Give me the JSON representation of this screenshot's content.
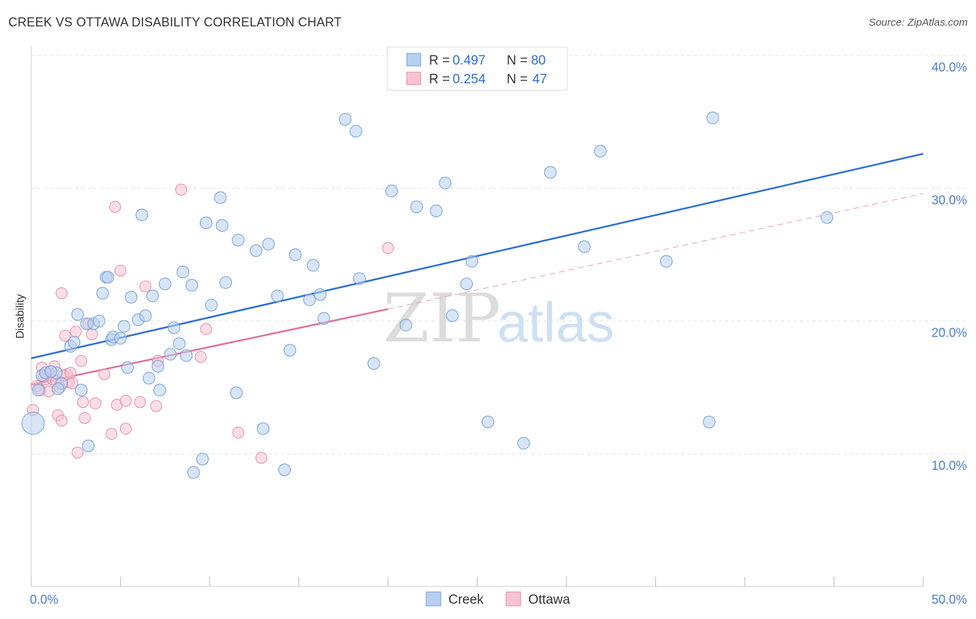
{
  "header": {
    "title": "CREEK VS OTTAWA DISABILITY CORRELATION CHART",
    "source": "Source: ZipAtlas.com"
  },
  "watermark": {
    "zip": "ZIP",
    "atlas": "atlas"
  },
  "legend": {
    "rows": [
      {
        "r_label": "R =",
        "r_value": "0.497",
        "n_label": "N =",
        "n_value": "80"
      },
      {
        "r_label": "R =",
        "r_value": "0.254",
        "n_label": "N =",
        "n_value": "47"
      }
    ]
  },
  "bottom_legend": {
    "creek": "Creek",
    "ottawa": "Ottawa"
  },
  "colors": {
    "creek_fill": "#b8d0f0",
    "creek_stroke": "#6f9fd8",
    "creek_line": "#2d6fd0",
    "ottawa_fill": "#f7c3d2",
    "ottawa_stroke": "#e88aa8",
    "ottawa_line": "#e0709a",
    "grid": "#e3e3e3",
    "tick_label": "#4a7fcf"
  },
  "chart_data": {
    "type": "scatter",
    "title": "CREEK VS OTTAWA DISABILITY CORRELATION CHART",
    "xlabel": "",
    "ylabel": "Disability",
    "xlim": [
      0,
      50
    ],
    "ylim": [
      0,
      42
    ],
    "x_tick_labels": [
      "0.0%",
      "50.0%"
    ],
    "y_ticks": [
      10,
      20,
      30,
      40
    ],
    "y_tick_labels": [
      "10.0%",
      "20.0%",
      "30.0%",
      "40.0%"
    ],
    "grid": true,
    "legend_position": "top-center",
    "series": [
      {
        "name": "Creek",
        "r": 0.497,
        "n": 80,
        "trend": {
          "x": [
            0,
            50
          ],
          "y": [
            17.2,
            32.6
          ],
          "style": "solid"
        },
        "points": [
          [
            0.1,
            12.3
          ],
          [
            0.4,
            14.8
          ],
          [
            0.6,
            15.9
          ],
          [
            0.8,
            16.1
          ],
          [
            1.4,
            16.1
          ],
          [
            1.7,
            15.3
          ],
          [
            1.5,
            14.9
          ],
          [
            1.1,
            16.2
          ],
          [
            2.2,
            18.1
          ],
          [
            2.4,
            18.4
          ],
          [
            2.6,
            20.5
          ],
          [
            2.8,
            14.8
          ],
          [
            3.1,
            19.8
          ],
          [
            3.2,
            10.6
          ],
          [
            3.5,
            19.8
          ],
          [
            3.8,
            20.0
          ],
          [
            4.0,
            22.1
          ],
          [
            4.2,
            23.3
          ],
          [
            4.3,
            23.3
          ],
          [
            4.5,
            18.6
          ],
          [
            4.6,
            18.8
          ],
          [
            5.0,
            18.7
          ],
          [
            5.2,
            19.6
          ],
          [
            5.4,
            16.5
          ],
          [
            5.6,
            21.8
          ],
          [
            6.0,
            20.1
          ],
          [
            6.2,
            28.0
          ],
          [
            6.4,
            20.4
          ],
          [
            6.6,
            15.7
          ],
          [
            6.8,
            21.9
          ],
          [
            7.1,
            16.6
          ],
          [
            7.2,
            14.8
          ],
          [
            7.5,
            22.8
          ],
          [
            7.8,
            17.5
          ],
          [
            8.0,
            19.5
          ],
          [
            8.3,
            18.3
          ],
          [
            8.5,
            23.7
          ],
          [
            8.7,
            17.4
          ],
          [
            9.0,
            22.7
          ],
          [
            9.1,
            8.6
          ],
          [
            9.6,
            9.6
          ],
          [
            9.8,
            27.4
          ],
          [
            10.1,
            21.2
          ],
          [
            10.6,
            29.3
          ],
          [
            10.7,
            27.2
          ],
          [
            10.9,
            22.9
          ],
          [
            11.5,
            14.6
          ],
          [
            11.6,
            26.1
          ],
          [
            12.6,
            25.3
          ],
          [
            13.0,
            11.9
          ],
          [
            13.3,
            25.8
          ],
          [
            13.8,
            21.9
          ],
          [
            14.2,
            8.8
          ],
          [
            14.5,
            17.8
          ],
          [
            14.8,
            25.0
          ],
          [
            15.6,
            21.6
          ],
          [
            15.8,
            24.2
          ],
          [
            16.2,
            22.0
          ],
          [
            16.4,
            20.2
          ],
          [
            17.6,
            35.2
          ],
          [
            18.2,
            34.3
          ],
          [
            18.4,
            23.2
          ],
          [
            19.2,
            16.8
          ],
          [
            20.2,
            29.8
          ],
          [
            21.0,
            19.7
          ],
          [
            21.6,
            28.6
          ],
          [
            22.7,
            28.3
          ],
          [
            23.2,
            30.4
          ],
          [
            23.6,
            20.4
          ],
          [
            24.4,
            22.8
          ],
          [
            24.7,
            24.5
          ],
          [
            25.6,
            12.4
          ],
          [
            27.6,
            10.8
          ],
          [
            29.1,
            31.2
          ],
          [
            31.0,
            25.6
          ],
          [
            31.9,
            32.8
          ],
          [
            35.6,
            24.5
          ],
          [
            38.2,
            35.3
          ],
          [
            44.6,
            27.8
          ],
          [
            38.0,
            12.4
          ]
        ]
      },
      {
        "name": "Ottawa",
        "r": 0.254,
        "n": 47,
        "trend": {
          "x": [
            0,
            20
          ],
          "y": [
            15.2,
            20.9
          ],
          "style": "solid",
          "extension": {
            "x": [
              20,
              50
            ],
            "y": [
              20.9,
              29.6
            ],
            "style": "dashed"
          }
        },
        "points": [
          [
            0.1,
            13.3
          ],
          [
            0.3,
            15.1
          ],
          [
            0.5,
            14.8
          ],
          [
            0.6,
            16.5
          ],
          [
            0.8,
            15.6
          ],
          [
            0.9,
            15.9
          ],
          [
            1.0,
            14.7
          ],
          [
            1.1,
            16.2
          ],
          [
            1.2,
            15.6
          ],
          [
            1.3,
            16.6
          ],
          [
            1.4,
            15.5
          ],
          [
            1.5,
            12.9
          ],
          [
            1.6,
            15.0
          ],
          [
            1.7,
            12.5
          ],
          [
            1.7,
            22.1
          ],
          [
            1.9,
            18.9
          ],
          [
            2.0,
            16.0
          ],
          [
            2.1,
            15.4
          ],
          [
            2.3,
            15.3
          ],
          [
            2.5,
            19.2
          ],
          [
            2.6,
            10.1
          ],
          [
            2.8,
            17.0
          ],
          [
            2.9,
            13.9
          ],
          [
            3.0,
            12.7
          ],
          [
            3.2,
            19.8
          ],
          [
            3.4,
            19.0
          ],
          [
            3.6,
            13.8
          ],
          [
            4.1,
            16.0
          ],
          [
            4.5,
            11.5
          ],
          [
            4.7,
            28.6
          ],
          [
            4.8,
            13.7
          ],
          [
            5.0,
            23.8
          ],
          [
            5.3,
            14.0
          ],
          [
            5.3,
            11.9
          ],
          [
            6.1,
            13.9
          ],
          [
            6.4,
            22.6
          ],
          [
            7.0,
            13.6
          ],
          [
            7.1,
            17.0
          ],
          [
            8.4,
            29.9
          ],
          [
            9.5,
            17.3
          ],
          [
            9.8,
            19.4
          ],
          [
            11.6,
            11.6
          ],
          [
            12.9,
            9.7
          ],
          [
            20.0,
            25.5
          ],
          [
            0.7,
            15.8
          ],
          [
            1.8,
            15.9
          ],
          [
            2.2,
            16.1
          ]
        ]
      }
    ]
  }
}
